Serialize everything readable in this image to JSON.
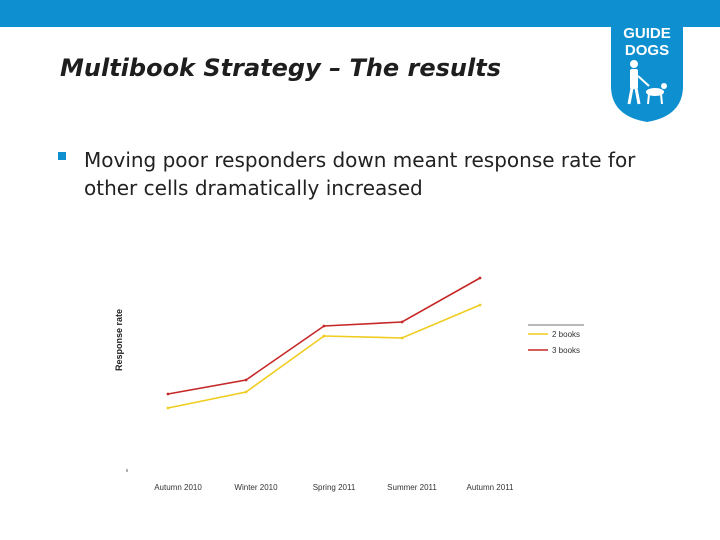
{
  "slide": {
    "title": "Multibook Strategy – The results",
    "bullet": "Moving poor responders down meant response rate for other cells dramatically increased"
  },
  "logo": {
    "line1": "GUIDE",
    "line2": "DOGS",
    "color": "#0d8fd0"
  },
  "colors": {
    "top_bar": "#0d8fd0",
    "bullet": "#0d8fd0",
    "series_2_books": "#f0cc1e",
    "series_3_books": "#c62828"
  },
  "chart_data": {
    "type": "line",
    "title": "",
    "xlabel": "",
    "ylabel": "Response rate",
    "categories": [
      "Autumn 2010",
      "Winter 2010",
      "Spring 2011",
      "Summer 2011",
      "Autumn 2011"
    ],
    "series": [
      {
        "name": "2 books",
        "values": [
          3.2,
          4.8,
          10.4,
          10.2,
          13.5
        ]
      },
      {
        "name": "3 books",
        "values": [
          4.6,
          6.0,
          11.4,
          11.8,
          16.2
        ]
      }
    ],
    "ylim": [
      0,
      20
    ],
    "grid": false,
    "legend": "right"
  }
}
